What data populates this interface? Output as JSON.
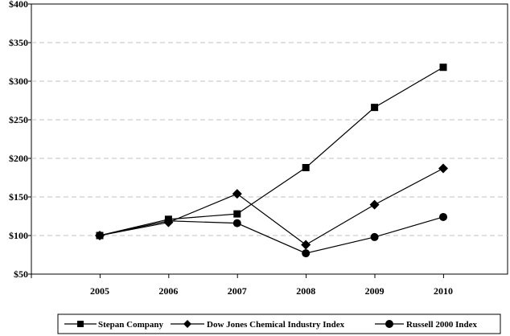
{
  "chart_data": {
    "type": "line",
    "categories": [
      "2005",
      "2006",
      "2007",
      "2008",
      "2009",
      "2010"
    ],
    "series": [
      {
        "name": "Stepan Company",
        "marker": "square",
        "values": [
          100,
          121,
          128,
          188,
          266,
          318
        ]
      },
      {
        "name": "Dow Jones Chemical Industry Index",
        "marker": "diamond",
        "values": [
          100,
          117,
          154,
          88,
          140,
          187
        ]
      },
      {
        "name": "Russell 2000 Index",
        "marker": "circle",
        "values": [
          100,
          119,
          116,
          77,
          98,
          124
        ]
      }
    ],
    "y_ticks": [
      "$50",
      "$100",
      "$150",
      "$200",
      "$250",
      "$300",
      "$350",
      "$400"
    ],
    "ylim": [
      50,
      400
    ],
    "grid": "horizontal dashed",
    "legend_position": "bottom",
    "line_color": "#000000",
    "grid_color": "#c0c0c0",
    "title": "",
    "xlabel": "",
    "ylabel": ""
  }
}
